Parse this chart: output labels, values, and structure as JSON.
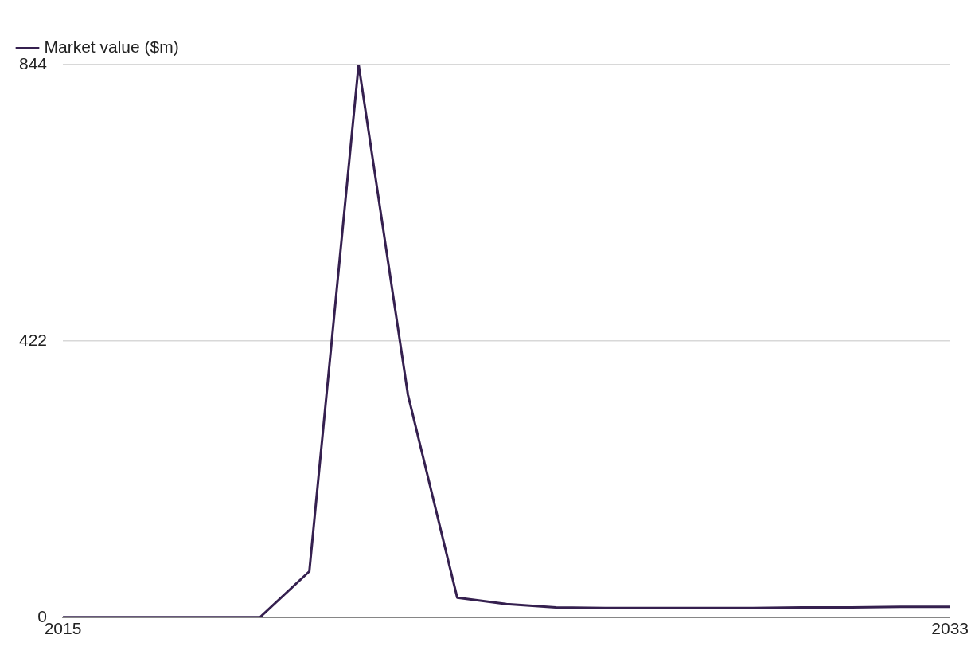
{
  "chart_data": {
    "type": "line",
    "x": [
      2015,
      2016,
      2017,
      2018,
      2019,
      2020,
      2021,
      2022,
      2023,
      2024,
      2025,
      2026,
      2027,
      2028,
      2029,
      2030,
      2031,
      2032,
      2033
    ],
    "series": [
      {
        "name": "Market value ($m)",
        "color": "#35204f",
        "values": [
          0,
          0,
          0,
          0,
          0,
          70,
          844,
          340,
          30,
          20,
          15,
          14,
          14,
          14,
          14,
          15,
          15,
          16,
          16
        ]
      }
    ],
    "xlim": [
      2015,
      2033
    ],
    "xticks": [
      2015,
      2033
    ],
    "ylim": [
      0,
      844
    ],
    "yticks": [
      0,
      422,
      844
    ],
    "grid": "y",
    "legend": "top left",
    "marker": "none",
    "line_style": "solid"
  }
}
